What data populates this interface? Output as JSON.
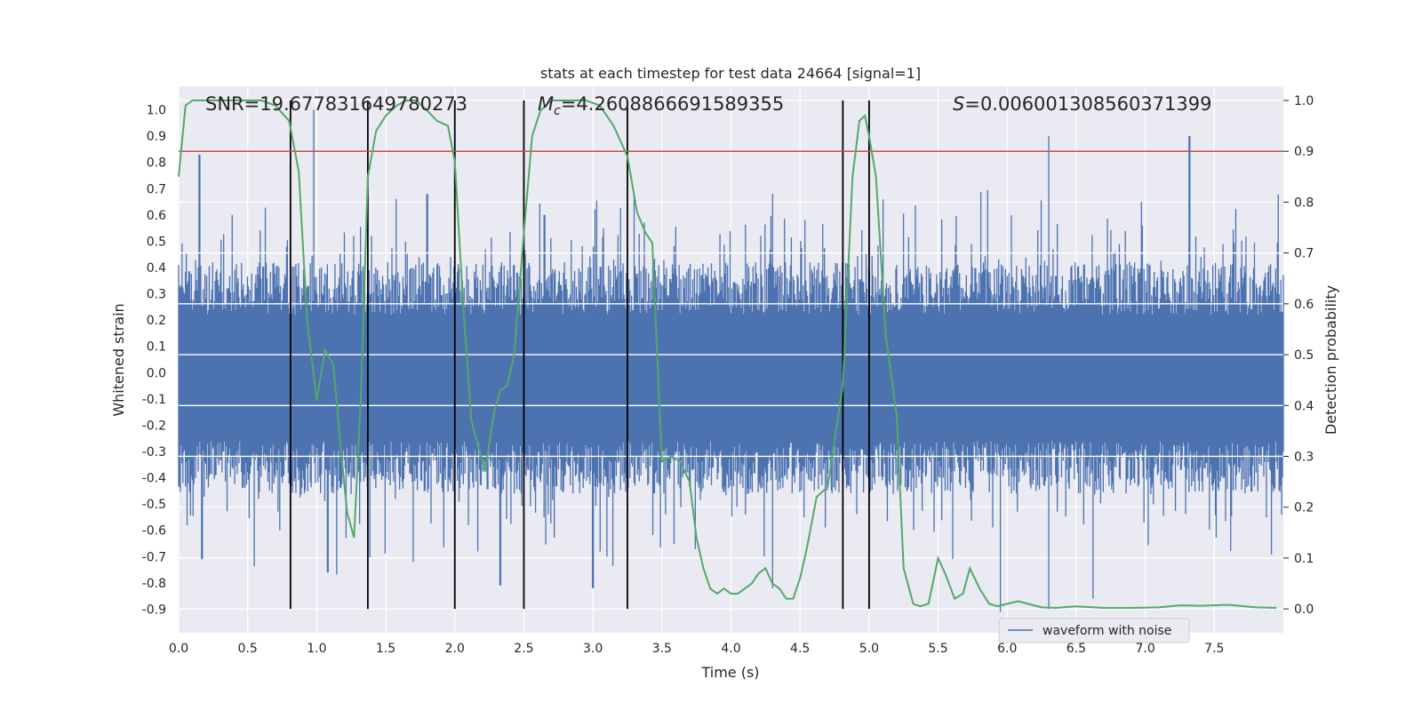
{
  "chart_data": {
    "type": "line",
    "title": "stats at each timestep for test data 24664 [signal=1]",
    "xlabel": "Time (s)",
    "ylabel": "Whitened strain",
    "y2label": "Detection probability",
    "xlim": [
      0.0,
      8.0
    ],
    "ylim": [
      -0.99,
      1.09
    ],
    "y2lim": [
      -0.047,
      1.028
    ],
    "x_ticks": [
      "0.0",
      "0.5",
      "1.0",
      "1.5",
      "2.0",
      "2.5",
      "3.0",
      "3.5",
      "4.0",
      "4.5",
      "5.0",
      "5.5",
      "6.0",
      "6.5",
      "7.0",
      "7.5"
    ],
    "y_ticks": [
      "1.0",
      "0.9",
      "0.8",
      "0.7",
      "0.6",
      "0.5",
      "0.4",
      "0.3",
      "0.2",
      "0.1",
      "0.0",
      "-0.1",
      "-0.2",
      "-0.3",
      "-0.4",
      "-0.5",
      "-0.6",
      "-0.7",
      "-0.8",
      "-0.9"
    ],
    "y2_ticks": [
      "1.0",
      "0.9",
      "0.8",
      "0.7",
      "0.6",
      "0.5",
      "0.4",
      "0.3",
      "0.2",
      "0.1",
      "0.0"
    ],
    "annotations": {
      "snr": "SNR=19.677831649780273",
      "mc_symbol": "M",
      "mc_sub": "c",
      "mc_value": "=4.2608866691589355",
      "s_symbol": "S",
      "s_value": "=0.006001308560371399"
    },
    "threshold": {
      "y2": 0.9,
      "color": "#c44e52"
    },
    "vertical_lines_x": [
      0.81,
      1.37,
      2.0,
      2.5,
      3.25,
      4.81,
      5.0
    ],
    "waveform": {
      "name": "waveform with noise",
      "color": "#4c72b0",
      "spike_times": [
        0.15,
        0.98,
        1.8,
        2.65,
        3.3,
        4.3,
        6.3,
        7.32
      ],
      "spike_values": [
        0.83,
        1.0,
        0.68,
        0.6,
        0.68,
        0.68,
        0.9,
        0.9
      ],
      "dip_times": [
        0.17,
        1.08,
        1.7,
        2.33,
        3.0,
        4.3,
        5.95,
        6.3,
        6.62
      ],
      "dip_values": [
        -0.71,
        -0.76,
        -0.72,
        -0.81,
        -0.82,
        -0.82,
        -0.91,
        -0.9,
        -0.86
      ]
    },
    "series": [
      {
        "name": "Detection probability",
        "color": "#55a868",
        "x": [
          0.0,
          0.05,
          0.1,
          0.2,
          0.3,
          0.4,
          0.5,
          0.6,
          0.7,
          0.8,
          0.87,
          0.93,
          1.0,
          1.06,
          1.12,
          1.18,
          1.22,
          1.27,
          1.32,
          1.37,
          1.43,
          1.5,
          1.58,
          1.65,
          1.72,
          1.8,
          1.87,
          1.95,
          2.0,
          2.06,
          2.12,
          2.18,
          2.22,
          2.28,
          2.33,
          2.38,
          2.43,
          2.5,
          2.56,
          2.62,
          2.7,
          2.78,
          2.85,
          2.95,
          3.05,
          3.15,
          3.25,
          3.32,
          3.38,
          3.43,
          3.5,
          3.57,
          3.63,
          3.7,
          3.75,
          3.8,
          3.85,
          3.9,
          3.95,
          4.0,
          4.05,
          4.1,
          4.15,
          4.2,
          4.25,
          4.3,
          4.35,
          4.4,
          4.45,
          4.5,
          4.55,
          4.62,
          4.7,
          4.81,
          4.88,
          4.93,
          4.97,
          5.0,
          5.05,
          5.12,
          5.2,
          5.25,
          5.32,
          5.37,
          5.43,
          5.5,
          5.55,
          5.62,
          5.68,
          5.73,
          5.8,
          5.87,
          5.93,
          6.0,
          6.08,
          6.15,
          6.25,
          6.35,
          6.5,
          6.7,
          6.9,
          7.1,
          7.25,
          7.4,
          7.6,
          7.8,
          7.95
        ],
        "y": [
          0.85,
          0.99,
          1.0,
          1.0,
          1.0,
          1.0,
          1.0,
          1.0,
          0.99,
          0.96,
          0.86,
          0.57,
          0.41,
          0.51,
          0.48,
          0.3,
          0.19,
          0.14,
          0.42,
          0.85,
          0.94,
          0.97,
          0.99,
          1.0,
          1.0,
          0.98,
          0.96,
          0.95,
          0.88,
          0.6,
          0.37,
          0.31,
          0.27,
          0.38,
          0.43,
          0.44,
          0.5,
          0.74,
          0.93,
          0.98,
          1.0,
          1.0,
          1.0,
          1.0,
          0.99,
          0.95,
          0.89,
          0.78,
          0.74,
          0.72,
          0.29,
          0.3,
          0.29,
          0.25,
          0.14,
          0.08,
          0.04,
          0.03,
          0.04,
          0.03,
          0.03,
          0.04,
          0.05,
          0.07,
          0.08,
          0.05,
          0.04,
          0.02,
          0.02,
          0.06,
          0.12,
          0.22,
          0.24,
          0.44,
          0.85,
          0.96,
          0.97,
          0.93,
          0.85,
          0.54,
          0.38,
          0.08,
          0.01,
          0.005,
          0.01,
          0.1,
          0.07,
          0.02,
          0.03,
          0.08,
          0.04,
          0.01,
          0.005,
          0.01,
          0.015,
          0.01,
          0.003,
          0.002,
          0.005,
          0.002,
          0.002,
          0.003,
          0.007,
          0.006,
          0.008,
          0.003,
          0.002
        ]
      }
    ],
    "legend": {
      "label": "waveform with noise",
      "position": "bottom-right"
    }
  }
}
